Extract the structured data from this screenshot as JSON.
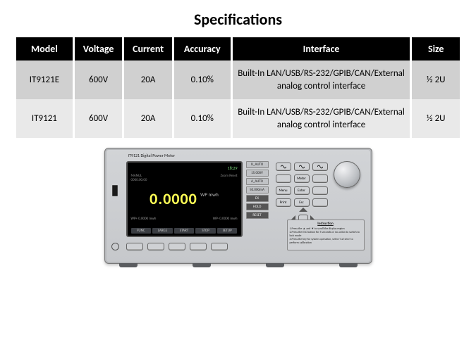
{
  "title": "Specifications",
  "table": {
    "columns": [
      "Model",
      "Voltage",
      "Current",
      "Accuracy",
      "Interface",
      "Size"
    ],
    "col_widths_pct": [
      13,
      11,
      11,
      13,
      41,
      11
    ],
    "header_bg": "#000000",
    "header_fg": "#ffffff",
    "row_bg_alt": [
      "#d0d0d0",
      "#e9e9e9"
    ],
    "rows": [
      [
        "IT9121E",
        "600V",
        "20A",
        "0.10%",
        "Built-In LAN/USB/RS-232/GPIB/CAN/External analog control interface",
        "½ 2U"
      ],
      [
        "IT9121",
        "600V",
        "20A",
        "0.10%",
        "Built-In LAN/USB/RS-232/GPIB/CAN/External analog control interface",
        "½ 2U"
      ]
    ]
  },
  "device": {
    "brand": "IT9121  Digital Power Meter",
    "screen": {
      "top_left": "",
      "top_right": "18:29",
      "line2_left": "MANUL",
      "line2_center": "Zoom   Reset",
      "line2_right": "0000:00:00",
      "main_value": "0.0000",
      "main_unit": "WP\nmwh",
      "bottom_labels": [
        "WP+  0.0000 mwh",
        "WP-   0.0000 mwh"
      ],
      "tabs": [
        "FUNC",
        "LARGE",
        "START",
        "STOP",
        "SETUP"
      ]
    },
    "side_readouts": [
      "U_AUTO",
      "15.000V",
      "A_AUTO",
      "50.000mA",
      "EX",
      "HOLD",
      "RESET"
    ],
    "buttons_row1_icons": [
      "sine",
      "square",
      "scope"
    ],
    "buttons_row2": [
      "",
      "Meter",
      ""
    ],
    "buttons_row3": [
      "Menu",
      "Enter",
      ""
    ],
    "buttons_row4": [
      "Print",
      "Esc",
      ""
    ],
    "instruction_title": "Instruction",
    "instruction_lines": [
      "1.Press the ▲ and ▼ to scroll the display region",
      "2.Press the ESC button for 5 seconds or no action to switch to lock mode",
      "3.Press the key for system operation, select 'Cal-zero' to perform calibration"
    ]
  }
}
